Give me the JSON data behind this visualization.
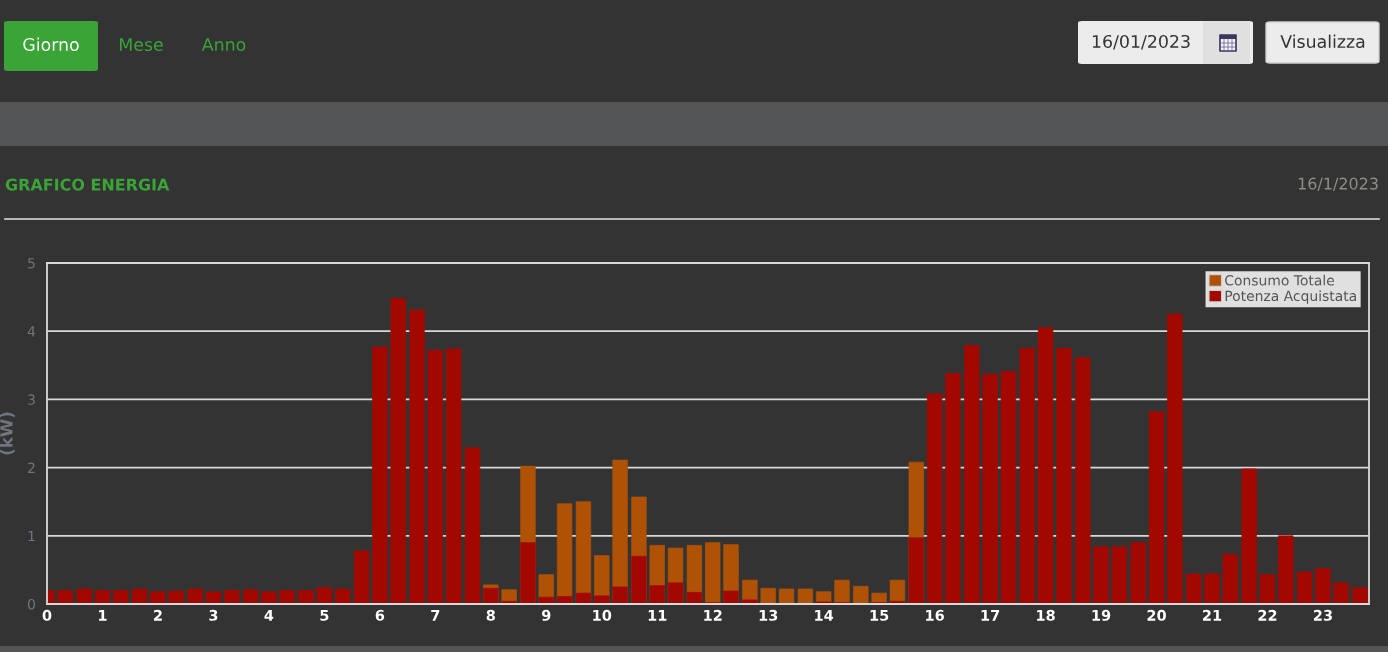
{
  "chart_data": {
    "type": "bar",
    "title": "GRAFICO ENERGIA",
    "subtitle": "16/1/2023",
    "ylabel": "(kW)",
    "annotations": [
      "Giorno",
      "Mese",
      "Anno",
      "16/01/2023",
      "Visualizza"
    ],
    "x": [
      0,
      0.33,
      0.67,
      1,
      1.33,
      1.67,
      2,
      2.33,
      2.67,
      3,
      3.33,
      3.67,
      4,
      4.33,
      4.67,
      5,
      5.33,
      5.67,
      6,
      6.33,
      6.67,
      7,
      7.33,
      7.67,
      8,
      8.33,
      8.67,
      9,
      9.33,
      9.67,
      10,
      10.33,
      10.67,
      11,
      11.33,
      11.67,
      12,
      12.33,
      12.67,
      13,
      13.33,
      13.67,
      14,
      14.33,
      14.67,
      15,
      15.33,
      15.67,
      16,
      16.33,
      16.67,
      17,
      17.33,
      17.67,
      18,
      18.33,
      18.67,
      19,
      19.33,
      19.67,
      20,
      20.33,
      20.67,
      21,
      21.33,
      21.67,
      22,
      22.33,
      22.67,
      23,
      23.33,
      23.67
    ],
    "series": [
      {
        "name": "Consumo Totale",
        "color": "#b05206",
        "values": [
          null,
          null,
          null,
          null,
          null,
          null,
          null,
          null,
          null,
          null,
          null,
          null,
          null,
          null,
          null,
          null,
          null,
          null,
          null,
          null,
          null,
          null,
          null,
          null,
          0.28,
          0.21,
          2.02,
          0.43,
          1.47,
          1.5,
          0.71,
          2.11,
          1.57,
          0.86,
          0.82,
          0.86,
          0.9,
          0.87,
          0.35,
          0.23,
          0.22,
          0.22,
          0.18,
          0.35,
          0.26,
          0.16,
          0.35,
          2.08,
          null,
          null,
          null,
          null,
          null,
          null,
          null,
          null,
          null,
          null,
          null,
          null,
          null,
          null,
          null,
          null,
          null,
          null,
          null,
          null,
          null,
          null,
          null,
          null
        ]
      },
      {
        "name": "Potenza Acquistata",
        "color": "#a30800",
        "values": [
          0.2,
          0.2,
          0.22,
          0.2,
          0.2,
          0.22,
          0.18,
          0.19,
          0.22,
          0.18,
          0.2,
          0.21,
          0.18,
          0.2,
          0.2,
          0.24,
          0.22,
          0.78,
          3.77,
          4.48,
          4.31,
          3.72,
          3.74,
          2.29,
          0.23,
          0.04,
          0.9,
          0.1,
          0.11,
          0.16,
          0.12,
          0.25,
          0.7,
          0.27,
          0.31,
          0.17,
          0.02,
          0.19,
          0.06,
          null,
          null,
          null,
          0.03,
          0.02,
          null,
          0.02,
          0.04,
          0.97,
          3.08,
          3.38,
          3.79,
          3.37,
          3.41,
          3.75,
          4.05,
          3.75,
          3.61,
          0.84,
          0.84,
          0.9,
          2.82,
          4.25,
          0.44,
          0.44,
          0.73,
          1.98,
          0.43,
          1.0,
          0.47,
          0.52,
          0.31,
          0.24
        ]
      }
    ],
    "xlim": [
      0,
      23.83
    ],
    "xticks": [
      0,
      1,
      2,
      3,
      4,
      5,
      6,
      7,
      8,
      9,
      10,
      11,
      12,
      13,
      14,
      15,
      16,
      17,
      18,
      19,
      20,
      21,
      22,
      23
    ],
    "ylim": [
      0,
      5
    ],
    "yticks": [
      0,
      1,
      2,
      3,
      4,
      5
    ],
    "grid": "y",
    "legend": "top right"
  }
}
